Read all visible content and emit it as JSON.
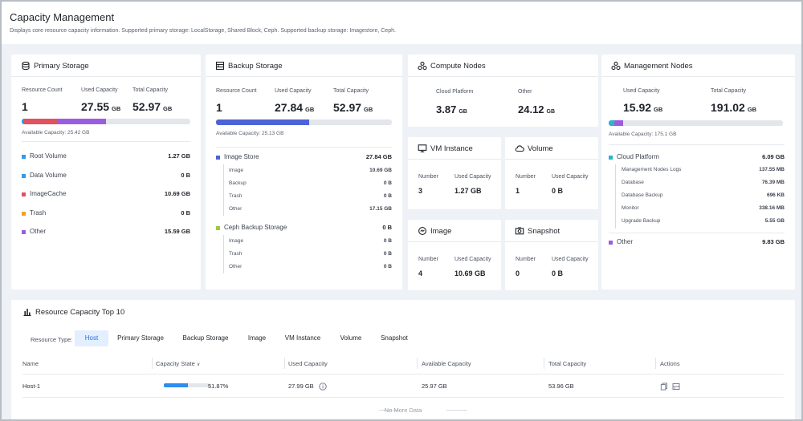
{
  "page": {
    "title": "Capacity Management",
    "subtitle": "Displays core resource capacity information. Supported primary storage: LocalStorage, Shared Block, Ceph. Supported backup storage: Imagestore, Ceph."
  },
  "primary_storage": {
    "title": "Primary Storage",
    "resource_count_label": "Resource Count",
    "resource_count": "1",
    "used_label": "Used Capacity",
    "used_value": "27.55",
    "used_unit": "GB",
    "total_label": "Total Capacity",
    "total_value": "52.97",
    "total_unit": "GB",
    "available": "Available Capacity: 25.42 GB",
    "bar_segments": [
      {
        "color": "#2f9bf0",
        "fraction": 0.01
      },
      {
        "color": "#e05260",
        "fraction": 0.2
      },
      {
        "color": "#9b5de0",
        "fraction": 0.29
      }
    ],
    "items": [
      {
        "label": "Root Volume",
        "value": "1.27 GB",
        "color": "#2f9bf0"
      },
      {
        "label": "Data Volume",
        "value": "0 B",
        "color": "#2f9bf0"
      },
      {
        "label": "ImageCache",
        "value": "10.69 GB",
        "color": "#e05260"
      },
      {
        "label": "Trash",
        "value": "0 B",
        "color": "#f3a125"
      },
      {
        "label": "Other",
        "value": "15.59 GB",
        "color": "#9b5de0"
      }
    ]
  },
  "backup_storage": {
    "title": "Backup Storage",
    "resource_count_label": "Resource Count",
    "resource_count": "1",
    "used_label": "Used Capacity",
    "used_value": "27.84",
    "used_unit": "GB",
    "total_label": "Total Capacity",
    "total_value": "52.97",
    "total_unit": "GB",
    "available": "Available Capacity: 25.13 GB",
    "bar_fraction": 0.53,
    "bar_color": "#4d63d6",
    "groups": [
      {
        "label": "Image Store",
        "value": "27.84 GB",
        "color": "#4d63d6",
        "subs": [
          {
            "label": "Image",
            "value": "10.69 GB"
          },
          {
            "label": "Backup",
            "value": "0 B"
          },
          {
            "label": "Trash",
            "value": "0 B"
          },
          {
            "label": "Other",
            "value": "17.15 GB"
          }
        ]
      },
      {
        "label": "Ceph Backup Storage",
        "value": "0 B",
        "color": "#9ccc3c",
        "subs": [
          {
            "label": "Image",
            "value": "0 B"
          },
          {
            "label": "Trash",
            "value": "0 B"
          },
          {
            "label": "Other",
            "value": "0 B"
          }
        ]
      }
    ]
  },
  "compute_nodes": {
    "title": "Compute Nodes",
    "cloud_label": "Cloud Platform",
    "cloud_value": "3.87",
    "cloud_unit": "GB",
    "other_label": "Other",
    "other_value": "24.12",
    "other_unit": "GB"
  },
  "vm_instance": {
    "title": "VM Instance",
    "number_label": "Number",
    "number": "3",
    "used_label": "Used Capacity",
    "used": "1.27 GB"
  },
  "volume": {
    "title": "Volume",
    "number_label": "Number",
    "number": "1",
    "used_label": "Used Capacity",
    "used": "0 B"
  },
  "image": {
    "title": "Image",
    "number_label": "Number",
    "number": "4",
    "used_label": "Used Capacity",
    "used": "10.69 GB"
  },
  "snapshot": {
    "title": "Snapshot",
    "number_label": "Number",
    "number": "0",
    "used_label": "Used Capacity",
    "used": "0 B"
  },
  "management_nodes": {
    "title": "Management Nodes",
    "used_label": "Used Capacity",
    "used_value": "15.92",
    "used_unit": "GB",
    "total_label": "Total Capacity",
    "total_value": "191.02",
    "total_unit": "GB",
    "available": "Available Capacity: 175.1 GB",
    "bar_segments": [
      {
        "color": "#27b7c9",
        "fraction": 0.03
      },
      {
        "color": "#9b5de0",
        "fraction": 0.05
      }
    ],
    "cloud": {
      "label": "Cloud Platform",
      "value": "6.09 GB",
      "color": "#27b7c9"
    },
    "subs": [
      {
        "label": "Management Nodes Logs",
        "value": "137.55 MB"
      },
      {
        "label": "Database",
        "value": "76.39 MB"
      },
      {
        "label": "Database Backup",
        "value": "696 KB"
      },
      {
        "label": "Monitor",
        "value": "338.16 MB"
      },
      {
        "label": "Upgrade Backup",
        "value": "5.55 GB"
      }
    ],
    "other": {
      "label": "Other",
      "value": "9.83 GB",
      "color": "#9b5de0"
    }
  },
  "top10": {
    "title": "Resource Capacity Top 10",
    "resource_type_label": "Resource Type:",
    "tabs": [
      "Host",
      "Primary Storage",
      "Backup Storage",
      "Image",
      "VM Instance",
      "Volume",
      "Snapshot"
    ],
    "active_tab": "Host",
    "columns": [
      "Name",
      "Capacity State",
      "Used Capacity",
      "Available Capacity",
      "Total Capacity",
      "Actions"
    ],
    "rows": [
      {
        "name": "Host-1",
        "state_percent": "51.87%",
        "state_fraction": 0.5187,
        "used": "27.99 GB",
        "available": "25.97 GB",
        "total": "53.96 GB"
      }
    ],
    "no_more": "No More Data"
  }
}
